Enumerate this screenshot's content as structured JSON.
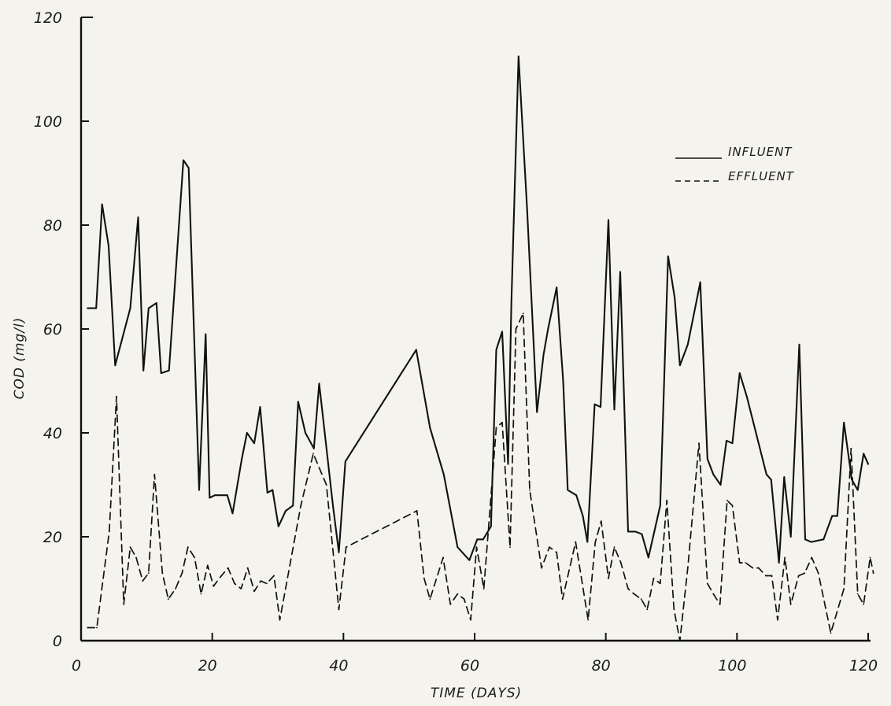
{
  "chart_data": {
    "type": "line",
    "title": "",
    "xlabel": "TIME  (DAYS)",
    "ylabel": "COD  (mg/l)",
    "xlim": [
      0,
      120
    ],
    "ylim": [
      0,
      120
    ],
    "x_ticks": [
      0,
      20,
      40,
      60,
      80,
      100,
      120
    ],
    "y_ticks": [
      0,
      20,
      40,
      60,
      80,
      100,
      120
    ],
    "x_tick_labels": [
      "0",
      "20",
      "40",
      "60",
      "80",
      "100",
      "120"
    ],
    "y_tick_labels": [
      "0",
      "20",
      "40",
      "60",
      "80",
      "100",
      "120"
    ],
    "grid": false,
    "legend_position": "top-right",
    "series": [
      {
        "name": "INFLUENT",
        "style": "solid",
        "color": "#111111",
        "points": [
          [
            1,
            64
          ],
          [
            2.3,
            64
          ],
          [
            3.2,
            84
          ],
          [
            4.2,
            76
          ],
          [
            5.2,
            53
          ],
          [
            7.5,
            64
          ],
          [
            8.7,
            81.5
          ],
          [
            9.5,
            52
          ],
          [
            10.3,
            64
          ],
          [
            11.5,
            65
          ],
          [
            12.2,
            51.5
          ],
          [
            13.4,
            52
          ],
          [
            15.6,
            92.5
          ],
          [
            16.4,
            91
          ],
          [
            18,
            29
          ],
          [
            19,
            59
          ],
          [
            19.6,
            27.5
          ],
          [
            20.4,
            28
          ],
          [
            22.3,
            28
          ],
          [
            23.1,
            24.5
          ],
          [
            24.5,
            35
          ],
          [
            25.3,
            40
          ],
          [
            26.4,
            38
          ],
          [
            27.3,
            45
          ],
          [
            28.4,
            28.5
          ],
          [
            29.2,
            29
          ],
          [
            30.1,
            22
          ],
          [
            31.2,
            25
          ],
          [
            32.3,
            26
          ],
          [
            33.1,
            46
          ],
          [
            34.2,
            40
          ],
          [
            35.5,
            37
          ],
          [
            36.3,
            49.5
          ],
          [
            38.4,
            26
          ],
          [
            39.3,
            17
          ],
          [
            40.3,
            34.5
          ],
          [
            51.1,
            56
          ],
          [
            53.2,
            41
          ],
          [
            55.3,
            32
          ],
          [
            57.4,
            18
          ],
          [
            59.2,
            15.5
          ],
          [
            60.4,
            19.5
          ],
          [
            61.3,
            19.5
          ],
          [
            62.5,
            22
          ],
          [
            63.3,
            56
          ],
          [
            64.2,
            59.5
          ],
          [
            65.1,
            34
          ],
          [
            65.6,
            65
          ],
          [
            66.7,
            112.5
          ],
          [
            68,
            83
          ],
          [
            69.5,
            44
          ],
          [
            70.5,
            55
          ],
          [
            71.2,
            60
          ],
          [
            72.5,
            68
          ],
          [
            73.5,
            50
          ],
          [
            74.2,
            29
          ],
          [
            75.5,
            28
          ],
          [
            76.5,
            24
          ],
          [
            77.2,
            19
          ],
          [
            78.3,
            45.5
          ],
          [
            79.2,
            45
          ],
          [
            80.4,
            81
          ],
          [
            81.3,
            44.5
          ],
          [
            82.2,
            71
          ],
          [
            83.4,
            21
          ],
          [
            84.5,
            21
          ],
          [
            85.5,
            20.5
          ],
          [
            86.5,
            16
          ],
          [
            88.3,
            26
          ],
          [
            89.5,
            74
          ],
          [
            90.5,
            66
          ],
          [
            91.3,
            53
          ],
          [
            92.5,
            57
          ],
          [
            94.4,
            69
          ],
          [
            95.5,
            35
          ],
          [
            96.4,
            32
          ],
          [
            97.5,
            30
          ],
          [
            98.4,
            38.5
          ],
          [
            99.3,
            38
          ],
          [
            100.4,
            51.5
          ],
          [
            101.5,
            47
          ],
          [
            104.5,
            32
          ],
          [
            105.2,
            31
          ],
          [
            106.4,
            15
          ],
          [
            107.2,
            31.5
          ],
          [
            108.2,
            20
          ],
          [
            109.5,
            57
          ],
          [
            110.4,
            19.5
          ],
          [
            111.3,
            19
          ],
          [
            113.2,
            19.5
          ],
          [
            114.5,
            24
          ],
          [
            115.3,
            24
          ],
          [
            116.3,
            42
          ],
          [
            117.5,
            31
          ],
          [
            118.4,
            29
          ],
          [
            119.3,
            36
          ],
          [
            120,
            34
          ]
        ]
      },
      {
        "name": "EFFLUENT",
        "style": "dashed",
        "color": "#111111",
        "points": [
          [
            1,
            2.5
          ],
          [
            2.4,
            2.5
          ],
          [
            4.3,
            21
          ],
          [
            5.4,
            47
          ],
          [
            6.5,
            7
          ],
          [
            7.5,
            18
          ],
          [
            8.4,
            16
          ],
          [
            9.4,
            11.5
          ],
          [
            10.3,
            13
          ],
          [
            11.2,
            32
          ],
          [
            12.4,
            13
          ],
          [
            13.3,
            8
          ],
          [
            14.4,
            10
          ],
          [
            15.4,
            13
          ],
          [
            16.3,
            18
          ],
          [
            17.3,
            16
          ],
          [
            18.3,
            9
          ],
          [
            19.3,
            14.5
          ],
          [
            20.2,
            10.5
          ],
          [
            21.4,
            12.5
          ],
          [
            22.4,
            14
          ],
          [
            23.4,
            11
          ],
          [
            24.4,
            10
          ],
          [
            25.4,
            14
          ],
          [
            26.4,
            9.5
          ],
          [
            27.4,
            11.5
          ],
          [
            28.3,
            11
          ],
          [
            29.4,
            12.5
          ],
          [
            30.3,
            4
          ],
          [
            33.5,
            26
          ],
          [
            35.4,
            36
          ],
          [
            37.4,
            30
          ],
          [
            39.3,
            6
          ],
          [
            40.4,
            18
          ],
          [
            51.2,
            25
          ],
          [
            52.3,
            12
          ],
          [
            53.2,
            8
          ],
          [
            55.2,
            16
          ],
          [
            56.3,
            7
          ],
          [
            57.4,
            9
          ],
          [
            58.4,
            8
          ],
          [
            59.4,
            4
          ],
          [
            60.3,
            18
          ],
          [
            61.4,
            10
          ],
          [
            63.3,
            41
          ],
          [
            64.2,
            42
          ],
          [
            65.4,
            18
          ],
          [
            66.3,
            60
          ],
          [
            67.4,
            63
          ],
          [
            68.4,
            29
          ],
          [
            70.2,
            14
          ],
          [
            71.4,
            18
          ],
          [
            72.5,
            17
          ],
          [
            73.4,
            8
          ],
          [
            75.4,
            19
          ],
          [
            77.3,
            4
          ],
          [
            78.4,
            19
          ],
          [
            79.3,
            23
          ],
          [
            80.4,
            12
          ],
          [
            81.3,
            18
          ],
          [
            82.3,
            15
          ],
          [
            83.4,
            10
          ],
          [
            84.3,
            9
          ],
          [
            85.4,
            8
          ],
          [
            86.3,
            6
          ],
          [
            87.3,
            12
          ],
          [
            88.3,
            11
          ],
          [
            89.3,
            27
          ],
          [
            90.4,
            6
          ],
          [
            91.3,
            0
          ],
          [
            92.5,
            14
          ],
          [
            94.2,
            38
          ],
          [
            95.5,
            11
          ],
          [
            96.4,
            9
          ],
          [
            97.4,
            7
          ],
          [
            98.5,
            27
          ],
          [
            99.3,
            26
          ],
          [
            100.4,
            15
          ],
          [
            101.3,
            15
          ],
          [
            102.4,
            14
          ],
          [
            103.3,
            14
          ],
          [
            104.4,
            12.5
          ],
          [
            105.3,
            12.5
          ],
          [
            106.2,
            4
          ],
          [
            107.3,
            16
          ],
          [
            108.2,
            7
          ],
          [
            109.4,
            12.5
          ],
          [
            110.3,
            13
          ],
          [
            111.4,
            16
          ],
          [
            112.4,
            13
          ],
          [
            114.3,
            1.5
          ],
          [
            116.3,
            10
          ],
          [
            117.4,
            37
          ],
          [
            118.4,
            9
          ],
          [
            119.3,
            7
          ],
          [
            120.3,
            16
          ],
          [
            120.8,
            13
          ]
        ]
      }
    ]
  }
}
